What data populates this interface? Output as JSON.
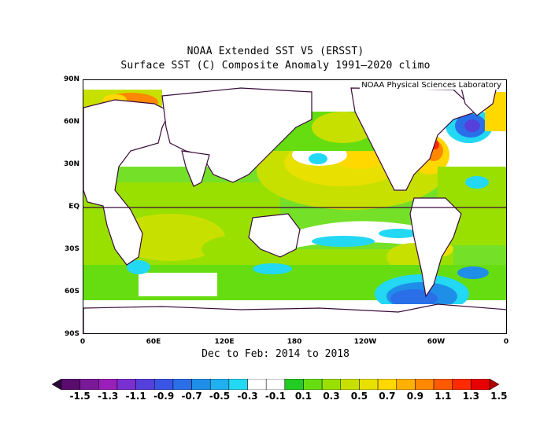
{
  "title_line1": "NOAA Extended SST V5 (ERSST)",
  "title_line2": "Surface SST (C) Composite Anomaly 1991–2020 climo",
  "credit": "NOAA Physical Sciences Laboratory",
  "period": "Dec to Feb: 2014 to 2018",
  "lat_labels": [
    "90N",
    "60N",
    "30N",
    "EQ",
    "30S",
    "60S",
    "90S"
  ],
  "lon_labels": [
    "0",
    "60E",
    "120E",
    "180",
    "120W",
    "60W",
    "0"
  ],
  "colorbar": {
    "labels": [
      "-1.5",
      "-1.3",
      "-1.1",
      "-0.9",
      "-0.7",
      "-0.5",
      "-0.3",
      "-0.1",
      "0.1",
      "0.3",
      "0.5",
      "0.7",
      "0.9",
      "1.1",
      "1.3",
      "1.5"
    ],
    "colors": [
      "#2a0a3a",
      "#5a0b6e",
      "#7b1a99",
      "#9a1fb8",
      "#7a2fd0",
      "#5540dc",
      "#3a55e6",
      "#2a6fe8",
      "#1f8ee8",
      "#20b0f0",
      "#22d8f2",
      "#ffffff",
      "#ffffff",
      "#22cc22",
      "#66dd11",
      "#99e000",
      "#c8e000",
      "#e8e000",
      "#ffd800",
      "#ffb000",
      "#ff8800",
      "#ff5a00",
      "#ff2a00",
      "#e80000",
      "#b00000"
    ]
  }
}
